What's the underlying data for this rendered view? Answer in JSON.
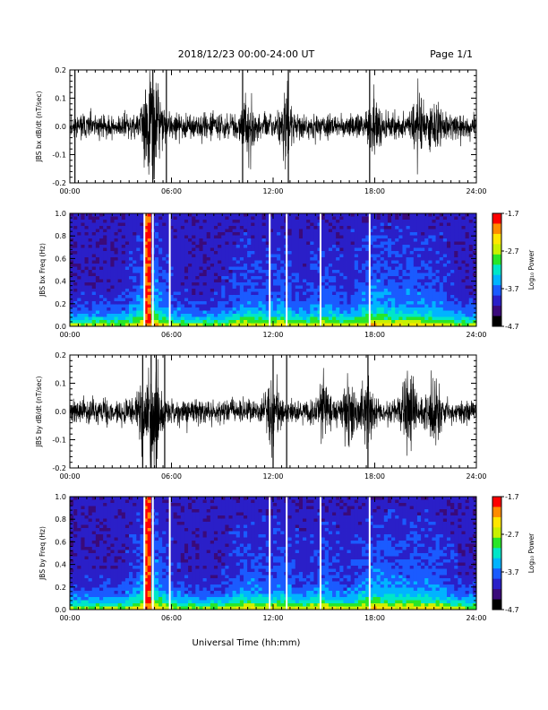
{
  "header": {
    "date_range": "2018/12/23  00:00-24:00 UT",
    "page": "Page 1/1"
  },
  "x_axis_label": "Universal Time (hh:mm)",
  "colors": {
    "background": "#ffffff",
    "waveform": "#000000",
    "data_gap": "#ffffff",
    "colormap": [
      "#000000",
      "#3a0a7a",
      "#2a1fc8",
      "#1a5bff",
      "#00b4ff",
      "#00e6c8",
      "#28e628",
      "#c8f000",
      "#ffe600",
      "#ff8c00",
      "#ff0000"
    ]
  },
  "chart_data": [
    {
      "type": "line",
      "ylabel": "JBS bx dB/dt (nT/sec)",
      "x_range_hours": [
        0,
        24
      ],
      "x_ticks": [
        "00:00",
        "06:00",
        "12:00",
        "18:00",
        "24:00"
      ],
      "ylim": [
        -0.2,
        0.2
      ],
      "y_ticks": [
        "0.2",
        "0.1",
        "0.0",
        "-0.1",
        "-0.2"
      ],
      "series": [
        {
          "values": "dense waveform, typical amplitude ~0.03-0.05 nT/sec, bursts to ~0.1-0.2",
          "activity_hours": [
            4.5,
            5.0,
            5.2,
            10.5,
            12.8,
            18.0,
            20.5,
            21.5
          ],
          "clipped_spikes_hours": [
            0.3,
            4.9,
            5.7,
            10.2,
            12.9,
            17.7
          ]
        }
      ],
      "grid": false
    },
    {
      "type": "heatmap",
      "ylabel": "JBS bx Freq (Hz)",
      "x_range_hours": [
        0,
        24
      ],
      "x_ticks": [
        "00:00",
        "06:00",
        "12:00",
        "18:00",
        "24:00"
      ],
      "ylim": [
        0.0,
        1.0
      ],
      "y_ticks": [
        "1.0",
        "0.8",
        "0.6",
        "0.4",
        "0.2",
        "0.0"
      ],
      "colorbar": {
        "label": "Log₁₀ Power",
        "range": [
          -4.7,
          -1.7
        ],
        "ticks": [
          "-1.7",
          "-2.7",
          "-3.7",
          "-4.7"
        ]
      },
      "data_gaps_hours": [
        4.4,
        4.9,
        5.9,
        11.8,
        12.8,
        14.8,
        17.7
      ],
      "high_power_hours": [
        4.55,
        4.75
      ]
    },
    {
      "type": "line",
      "ylabel": "JBS by dB/dt (nT/sec)",
      "x_range_hours": [
        0,
        24
      ],
      "x_ticks": [
        "00:00",
        "06:00",
        "12:00",
        "18:00",
        "24:00"
      ],
      "ylim": [
        -0.2,
        0.2
      ],
      "y_ticks": [
        "0.2",
        "0.1",
        "0.0",
        "-0.1",
        "-0.2"
      ],
      "series": [
        {
          "values": "dense waveform, typical amplitude ~0.04-0.06 nT/sec, bursts to ~0.2",
          "activity_hours": [
            4.3,
            4.8,
            5.1,
            12.0,
            15.0,
            16.5,
            17.5,
            20.0,
            21.5
          ],
          "clipped_spikes_hours": [
            4.3,
            4.8,
            5.1,
            5.6,
            12.0,
            12.8,
            17.6
          ]
        }
      ],
      "grid": false
    },
    {
      "type": "heatmap",
      "ylabel": "JBS by Freq (Hz)",
      "x_range_hours": [
        0,
        24
      ],
      "x_ticks": [
        "00:00",
        "06:00",
        "12:00",
        "18:00",
        "24:00"
      ],
      "ylim": [
        0.0,
        1.0
      ],
      "y_ticks": [
        "1.0",
        "0.8",
        "0.6",
        "0.4",
        "0.2",
        "0.0"
      ],
      "colorbar": {
        "label": "Log₁₀ Power",
        "range": [
          -4.7,
          -1.7
        ],
        "ticks": [
          "-1.7",
          "-2.7",
          "-3.7",
          "-4.7"
        ]
      },
      "data_gaps_hours": [
        4.4,
        4.9,
        5.9,
        11.8,
        12.8,
        14.8,
        17.7
      ],
      "high_power_hours": [
        4.55,
        4.75
      ]
    }
  ]
}
